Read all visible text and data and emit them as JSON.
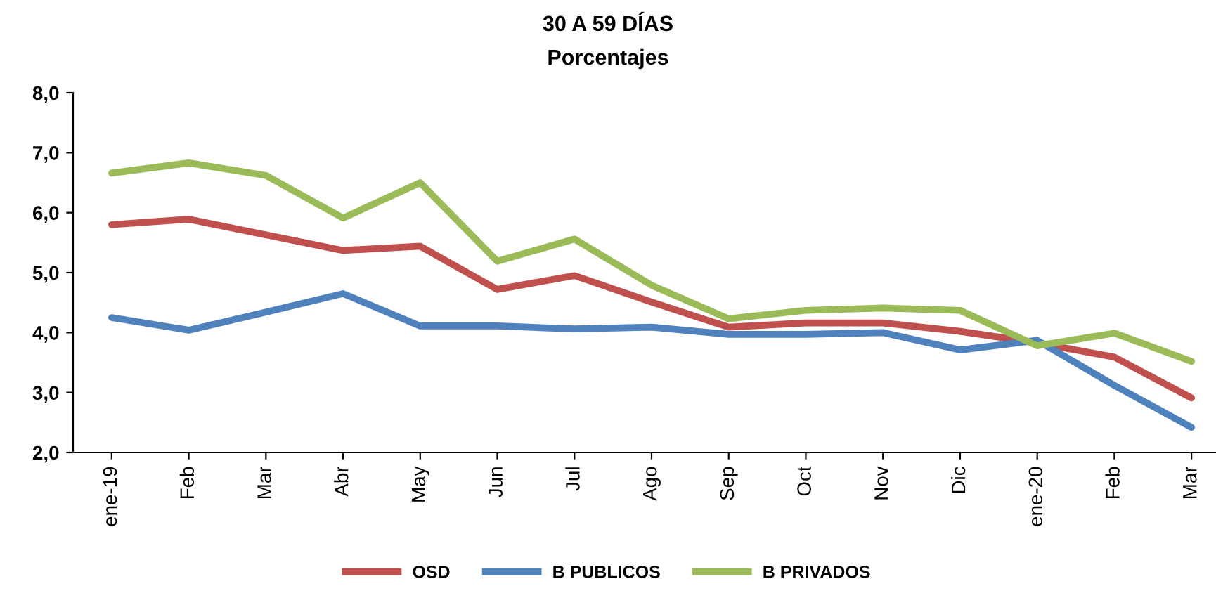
{
  "chart_data": {
    "type": "line",
    "title": "30 A 59 DÍAS",
    "subtitle": "Porcentajes",
    "categories": [
      "ene-19",
      "Feb",
      "Mar",
      "Abr",
      "May",
      "Jun",
      "Jul",
      "Ago",
      "Sep",
      "Oct",
      "Nov",
      "Dic",
      "ene-20",
      "Feb",
      "Mar"
    ],
    "series": [
      {
        "name": "OSD",
        "color": "#c0504d",
        "values": [
          5.8,
          5.89,
          5.63,
          5.37,
          5.44,
          4.72,
          4.95,
          4.51,
          4.09,
          4.16,
          4.16,
          4.02,
          3.83,
          3.59,
          2.91
        ]
      },
      {
        "name": "B PUBLICOS",
        "color": "#4f81bd",
        "values": [
          4.25,
          4.04,
          4.34,
          4.65,
          4.11,
          4.11,
          4.06,
          4.09,
          3.97,
          3.97,
          4.0,
          3.71,
          3.87,
          3.12,
          2.42
        ]
      },
      {
        "name": "B PRIVADOS",
        "color": "#9bbb59",
        "values": [
          6.66,
          6.83,
          6.62,
          5.91,
          6.5,
          5.19,
          5.56,
          4.79,
          4.23,
          4.37,
          4.41,
          4.37,
          3.78,
          3.99,
          3.52
        ]
      }
    ],
    "ylim": [
      2,
      8
    ],
    "yticks": [
      {
        "value": 2,
        "label": "2,0"
      },
      {
        "value": 3,
        "label": "3,0"
      },
      {
        "value": 4,
        "label": "4,0"
      },
      {
        "value": 5,
        "label": "5,0"
      },
      {
        "value": 6,
        "label": "6,0"
      },
      {
        "value": 7,
        "label": "7,0"
      },
      {
        "value": 8,
        "label": "8,0"
      }
    ],
    "grid": false,
    "legend": "bottom",
    "marker": "none",
    "line_style": "solid"
  }
}
